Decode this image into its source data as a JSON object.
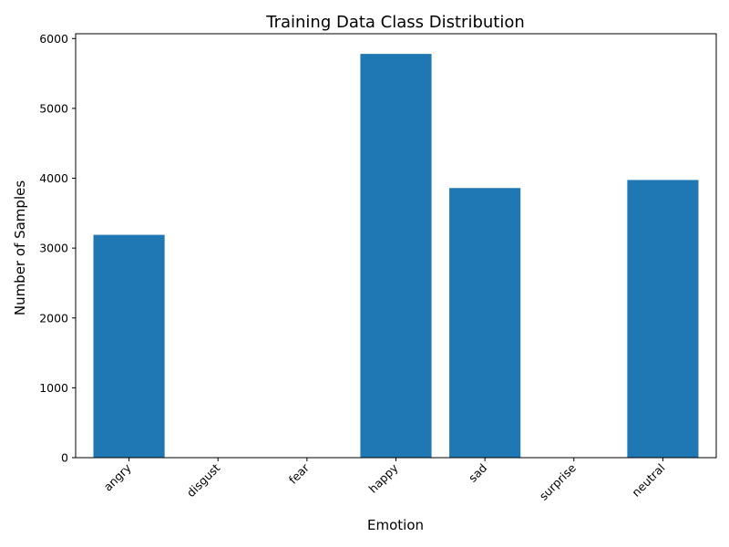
{
  "chart_data": {
    "type": "bar",
    "title": "Training Data Class Distribution",
    "xlabel": "Emotion",
    "ylabel": "Number of Samples",
    "categories": [
      "angry",
      "disgust",
      "fear",
      "happy",
      "sad",
      "surprise",
      "neutral"
    ],
    "values": [
      3190,
      0,
      0,
      5780,
      3860,
      0,
      3975
    ],
    "yticks": [
      0,
      1000,
      2000,
      3000,
      4000,
      5000,
      6000
    ],
    "ylim": [
      0,
      6069
    ],
    "bar_color": "#1f77b4",
    "grid": false,
    "legend": "none"
  }
}
